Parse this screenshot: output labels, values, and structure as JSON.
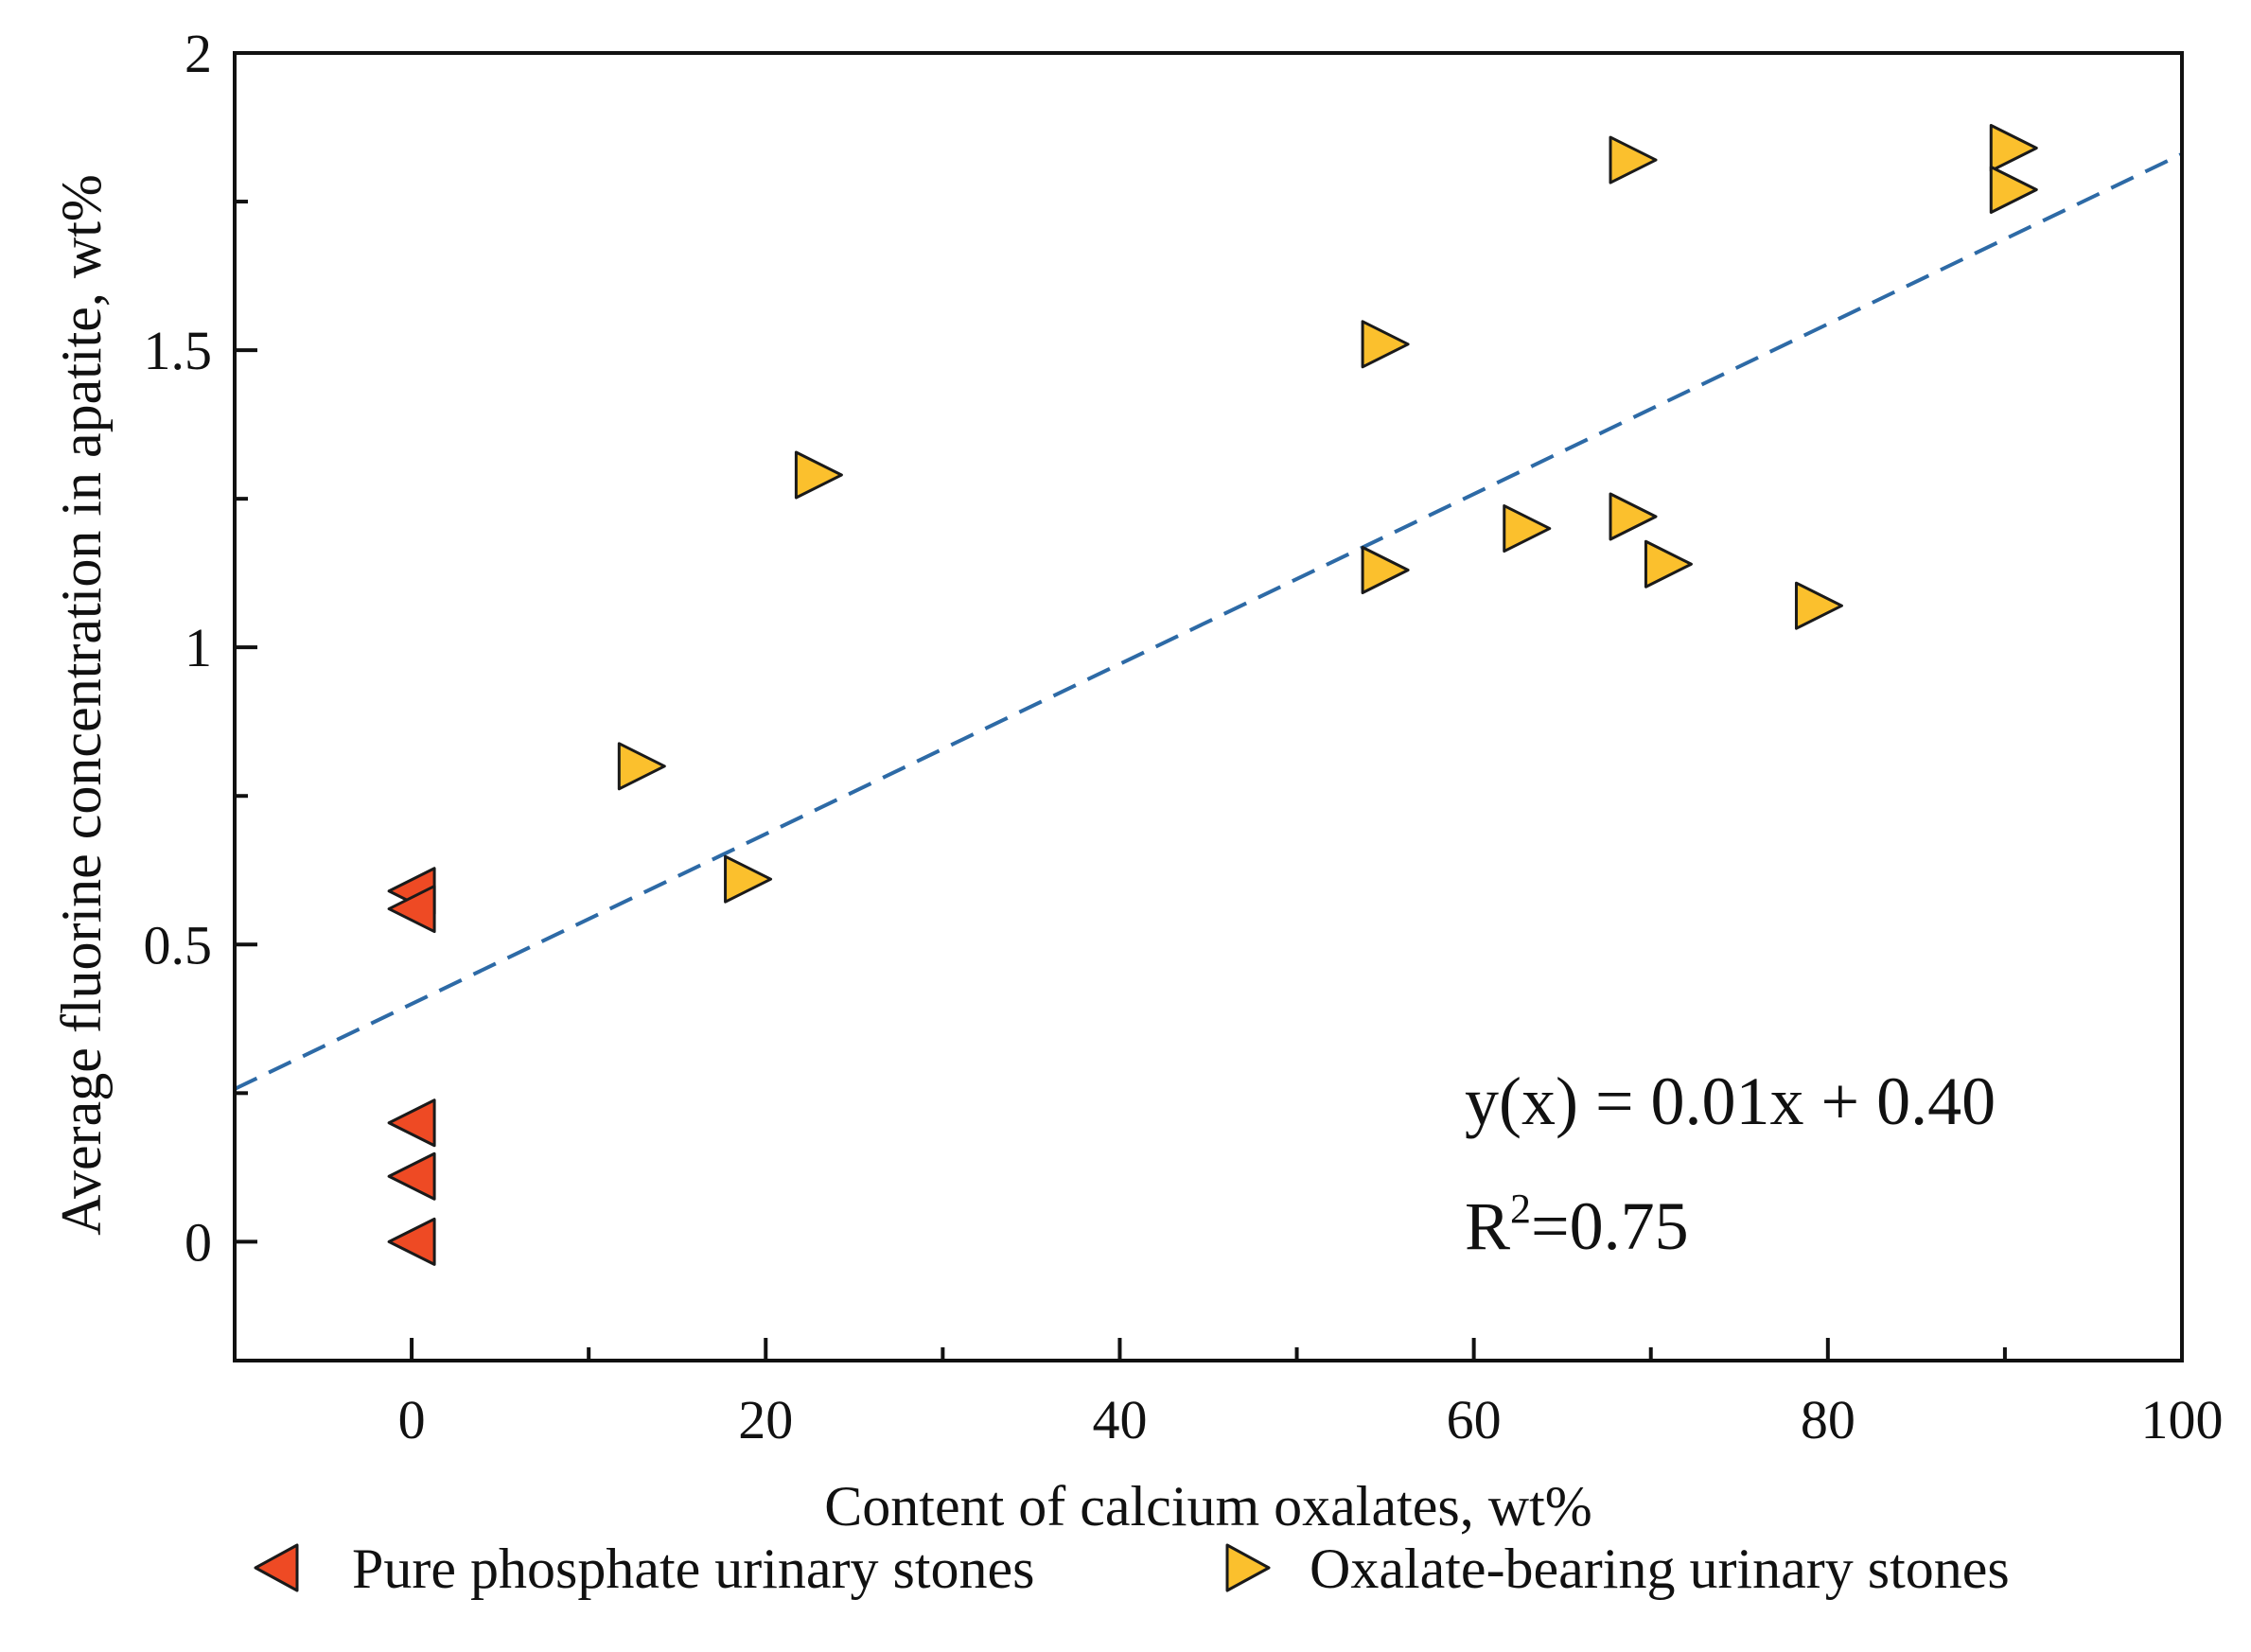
{
  "chart_data": {
    "type": "scatter",
    "xlabel": "Content of calcium oxalates, wt%",
    "ylabel": "Average fluorine concentration in apatite, wt%",
    "xlim": [
      -10,
      100
    ],
    "ylim": [
      -0.2,
      2.0
    ],
    "x_major_ticks": [
      0,
      20,
      40,
      60,
      80,
      100
    ],
    "x_minor_ticks": [
      10,
      30,
      50,
      70,
      90
    ],
    "x_tick_labels": [
      "0",
      "20",
      "40",
      "60",
      "80",
      "100"
    ],
    "y_major_ticks": [
      0,
      0.5,
      1,
      1.5,
      2
    ],
    "y_minor_ticks": [
      0.25,
      0.75,
      1.25,
      1.75
    ],
    "y_tick_labels": [
      "0",
      "0.5",
      "1",
      "1.5",
      "2"
    ],
    "grid": false,
    "legend_position": "bottom",
    "series": [
      {
        "name": "Pure phosphate urinary stones",
        "marker": "triangle-left",
        "color": "#ee4a24",
        "points": [
          [
            0,
            0.59
          ],
          [
            0,
            0.56
          ],
          [
            0,
            0.2
          ],
          [
            0,
            0.11
          ],
          [
            0,
            0.0
          ]
        ]
      },
      {
        "name": "Oxalate-bearing urinary stones",
        "marker": "triangle-right",
        "color": "#fbc02d",
        "points": [
          [
            13,
            0.8
          ],
          [
            19,
            0.61
          ],
          [
            23,
            1.29
          ],
          [
            55,
            1.51
          ],
          [
            55,
            1.13
          ],
          [
            63,
            1.2
          ],
          [
            69,
            1.82
          ],
          [
            69,
            1.22
          ],
          [
            71,
            1.14
          ],
          [
            79.5,
            1.07
          ],
          [
            90.5,
            1.84
          ],
          [
            90.5,
            1.77
          ]
        ]
      }
    ],
    "trendline": {
      "style": "dashed",
      "color": "#2d6aa6",
      "slope": 0.0143,
      "intercept": 0.4,
      "x_range": [
        -10,
        100
      ]
    },
    "annotations": {
      "equation": "y(x) = 0.01x + 0.40",
      "r2_prefix": "R",
      "r2_sup": "2",
      "r2_value": "=0.75"
    }
  }
}
